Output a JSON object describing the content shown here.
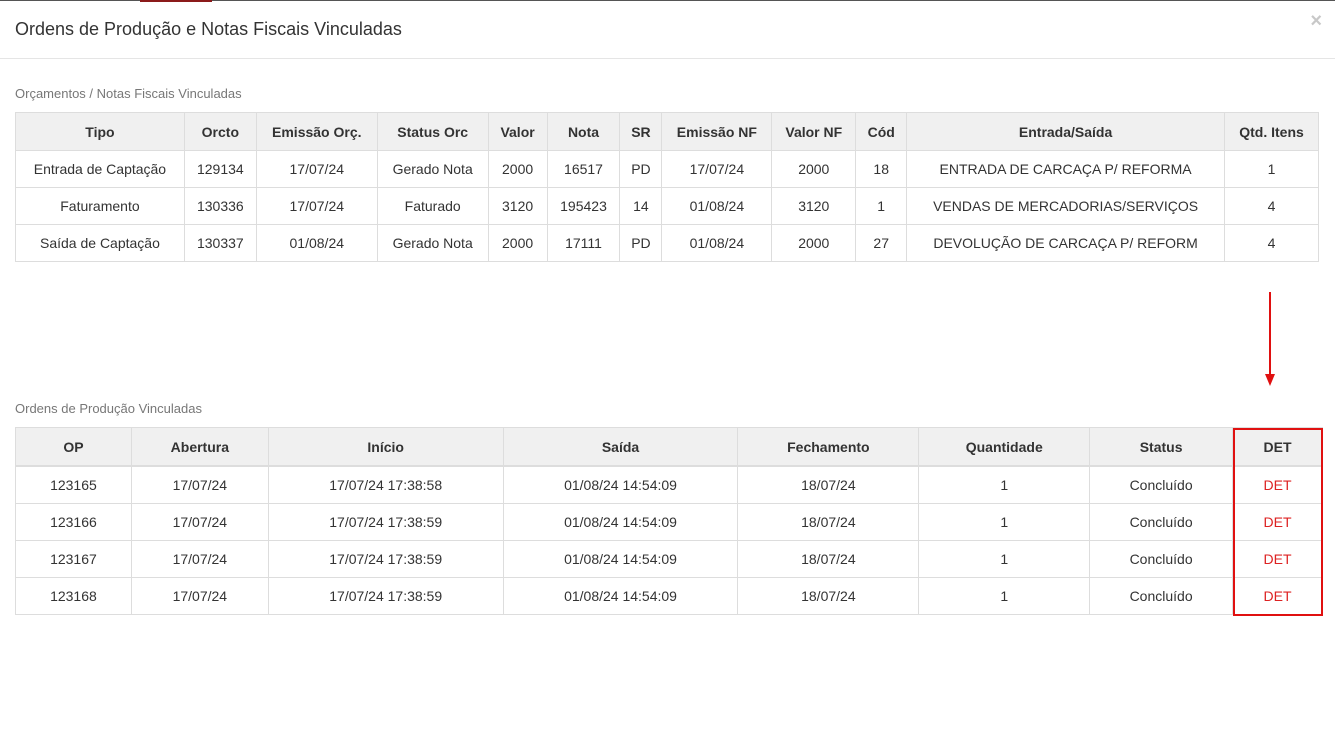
{
  "modal": {
    "title": "Ordens de Produção e Notas Fiscais Vinculadas",
    "close_label": "×"
  },
  "budgets_section": {
    "title": "Orçamentos / Notas Fiscais Vinculadas",
    "columns": [
      "Tipo",
      "Orcto",
      "Emissão Orç.",
      "Status Orc",
      "Valor",
      "Nota",
      "SR",
      "Emissão NF",
      "Valor NF",
      "Cód",
      "Entrada/Saída",
      "Qtd. Itens"
    ],
    "rows": [
      [
        "Entrada de Captação",
        "129134",
        "17/07/24",
        "Gerado Nota",
        "2000",
        "16517",
        "PD",
        "17/07/24",
        "2000",
        "18",
        "ENTRADA DE CARCAÇA P/ REFORMA",
        "1"
      ],
      [
        "Faturamento",
        "130336",
        "17/07/24",
        "Faturado",
        "3120",
        "195423",
        "14",
        "01/08/24",
        "3120",
        "1",
        "VENDAS DE MERCADORIAS/SERVIÇOS",
        "4"
      ],
      [
        "Saída de Captação",
        "130337",
        "01/08/24",
        "Gerado Nota",
        "2000",
        "17111",
        "PD",
        "01/08/24",
        "2000",
        "27",
        "DEVOLUÇÃO DE CARCAÇA P/ REFORM",
        "4"
      ]
    ]
  },
  "orders_section": {
    "title": "Ordens de Produção Vinculadas",
    "columns": [
      "OP",
      "Abertura",
      "Início",
      "Saída",
      "Fechamento",
      "Quantidade",
      "Status",
      "DET"
    ],
    "rows": [
      [
        "123165",
        "17/07/24",
        "17/07/24 17:38:58",
        "01/08/24 14:54:09",
        "18/07/24",
        "1",
        "Concluído",
        "DET"
      ],
      [
        "123166",
        "17/07/24",
        "17/07/24 17:38:59",
        "01/08/24 14:54:09",
        "18/07/24",
        "1",
        "Concluído",
        "DET"
      ],
      [
        "123167",
        "17/07/24",
        "17/07/24 17:38:59",
        "01/08/24 14:54:09",
        "18/07/24",
        "1",
        "Concluído",
        "DET"
      ],
      [
        "123168",
        "17/07/24",
        "17/07/24 17:38:59",
        "01/08/24 14:54:09",
        "18/07/24",
        "1",
        "Concluído",
        "DET"
      ]
    ]
  },
  "colors": {
    "accent_red": "#e01010",
    "link_red": "#dd2222",
    "header_bg": "#f0f0f0",
    "border": "#dddddd"
  }
}
